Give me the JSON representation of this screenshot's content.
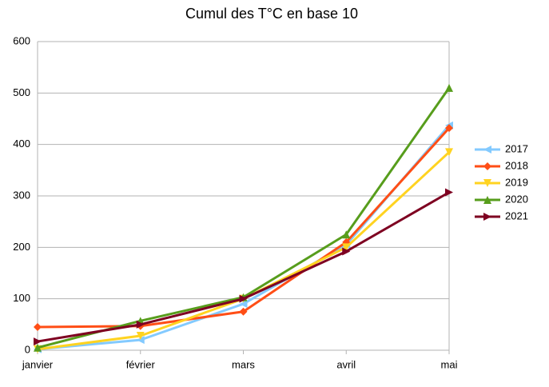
{
  "chart_data": {
    "type": "line",
    "title": "Cumul des T°C en base 10",
    "categories": [
      "janvier",
      "février",
      "mars",
      "avril",
      "mai"
    ],
    "series": [
      {
        "name": "2017",
        "color": "#83caff",
        "marker": "triangle-left",
        "values": [
          2,
          20,
          90,
          205,
          437
        ]
      },
      {
        "name": "2018",
        "color": "#ff4e16",
        "marker": "diamond",
        "values": [
          45,
          47,
          75,
          210,
          432
        ]
      },
      {
        "name": "2019",
        "color": "#ffd320",
        "marker": "triangle-down",
        "values": [
          2,
          28,
          100,
          200,
          385
        ]
      },
      {
        "name": "2020",
        "color": "#579d1c",
        "marker": "triangle-up",
        "values": [
          5,
          57,
          103,
          225,
          510
        ]
      },
      {
        "name": "2021",
        "color": "#7e0021",
        "marker": "triangle-right",
        "values": [
          17,
          50,
          100,
          192,
          307
        ]
      }
    ],
    "ylim": [
      0,
      600
    ],
    "yticks": [
      0,
      100,
      200,
      300,
      400,
      500,
      600
    ],
    "grid": true,
    "legend": "right"
  }
}
